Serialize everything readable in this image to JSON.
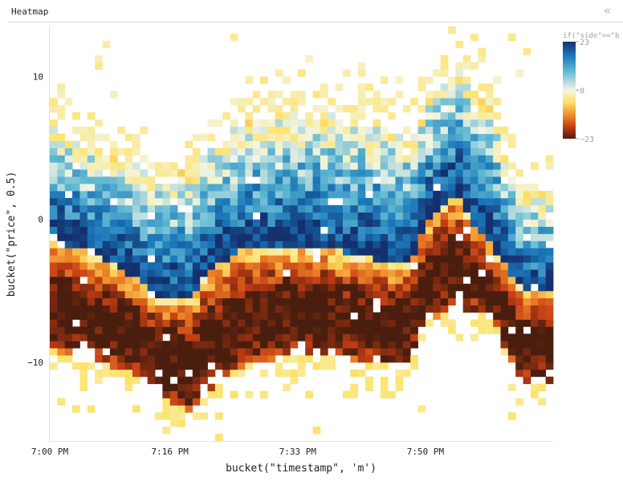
{
  "panel": {
    "title": "Heatmap",
    "collapse_icon": "double-chevron-left-icon"
  },
  "chart_data": {
    "type": "heatmap",
    "title": "Heatmap",
    "xlabel": "bucket(\"timestamp\", 'm')",
    "ylabel": "bucket(\"price\", 0.5)",
    "color_label": "if(\"side\"==\"b",
    "x_ticks": [
      "7:00 PM",
      "7:16 PM",
      "7:33 PM",
      "7:50 PM"
    ],
    "y_ticks": [
      10,
      0,
      -10
    ],
    "ylim": [
      -15.5,
      13.5
    ],
    "x_start": "7:00 PM",
    "x_bucket_minutes": 1,
    "x_bucket_count": 67,
    "y_bucket_size": 0.5,
    "color_scale": {
      "min": -23,
      "max": 23,
      "mid": 0,
      "colors": [
        "#4a1e0e",
        "#c13c14",
        "#f08a2a",
        "#fde36a",
        "#f3f5e3",
        "#5fb7d2",
        "#1a77b8",
        "#15306f"
      ]
    },
    "legend_ticks": [
      23,
      0,
      -23
    ],
    "legend_tick_labels": [
      "23",
      "0",
      "−23"
    ],
    "legend_position": "right",
    "grid": false,
    "profile_minute_offsets": [
      0,
      5,
      11,
      15,
      19,
      21,
      26,
      31,
      37,
      45,
      48,
      50,
      54,
      56,
      59,
      61,
      63,
      67
    ],
    "profile_center": [
      -1.5,
      -2,
      -4,
      -5.5,
      -5.5,
      -3.5,
      -2,
      -2,
      -2,
      -3,
      -3,
      0,
      2,
      0,
      -2,
      -3.5,
      -5,
      -5
    ],
    "profile_upper": [
      8,
      6,
      5,
      4,
      4.5,
      6,
      8,
      8.5,
      8.5,
      8,
      7,
      9,
      12,
      11,
      9,
      5,
      3,
      3
    ],
    "profile_lower": [
      -10,
      -10.5,
      -11.5,
      -13,
      -14.5,
      -13,
      -11,
      -10.5,
      -10.5,
      -11,
      -11,
      -8,
      -7,
      -7,
      -7.5,
      -10,
      -12,
      -12
    ]
  }
}
